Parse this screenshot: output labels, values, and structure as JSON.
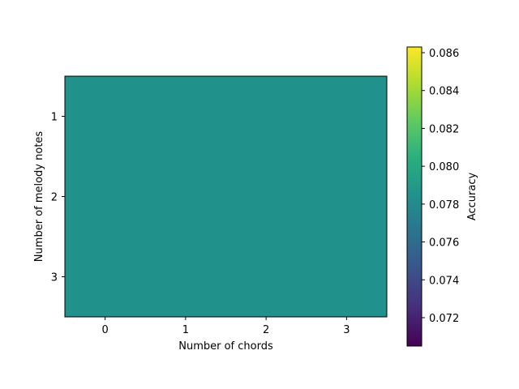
{
  "chart_data": {
    "type": "heatmap",
    "title": "",
    "xlabel": "Number of chords",
    "ylabel": "Number of melody notes",
    "x_categories": [
      "0",
      "1",
      "2",
      "3"
    ],
    "y_categories": [
      "1",
      "2",
      "3"
    ],
    "values": [
      [
        0.0785,
        0.0785,
        0.0785,
        0.0785
      ],
      [
        0.0785,
        0.0785,
        0.0785,
        0.0785
      ],
      [
        0.0785,
        0.0785,
        0.0785,
        0.0785
      ]
    ],
    "colormap": "viridis",
    "colorbar": {
      "label": "Accuracy",
      "range": [
        0.0705,
        0.0863
      ],
      "ticks": [
        "0.072",
        "0.074",
        "0.076",
        "0.078",
        "0.080",
        "0.082",
        "0.084",
        "0.086"
      ]
    },
    "cell_color": "#21918c",
    "grid": false
  }
}
